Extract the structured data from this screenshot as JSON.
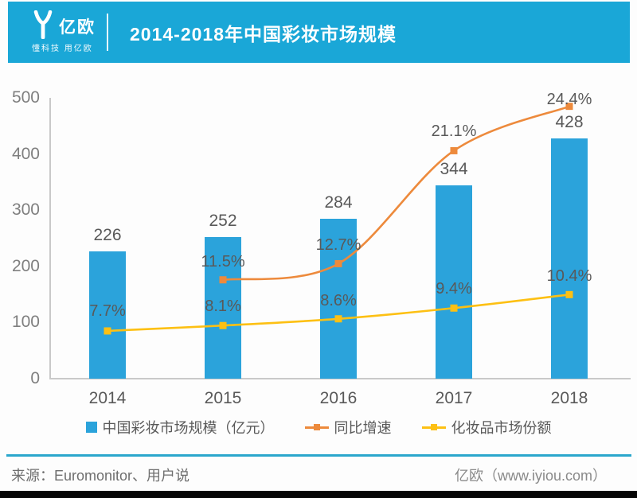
{
  "header": {
    "logo_text": "亿欧",
    "logo_tagline": "懂科技 用亿欧",
    "title": "2014-2018年中国彩妆市场规模"
  },
  "chart_data": {
    "type": "bar",
    "title": "2014-2018年中国彩妆市场规模",
    "categories": [
      "2014",
      "2015",
      "2016",
      "2017",
      "2018"
    ],
    "series": [
      {
        "name": "中国彩妆市场规模（亿元）",
        "type": "bar",
        "axis": "left",
        "color": "#2BA3DB",
        "values": [
          226,
          252,
          284,
          344,
          428
        ],
        "labels": [
          "226",
          "252",
          "284",
          "344",
          "428"
        ]
      },
      {
        "name": "同比增速",
        "type": "line",
        "axis": "right",
        "color": "#ED8A3C",
        "values": [
          null,
          11.5,
          12.7,
          21.1,
          24.4
        ],
        "labels": [
          "",
          "11.5%",
          "12.7%",
          "21.1%",
          "24.4%"
        ],
        "label_dy": [
          0,
          -23,
          -23,
          -24,
          -9
        ]
      },
      {
        "name": "化妆品市场份额",
        "type": "line",
        "axis": "right",
        "color": "#FDC013",
        "values": [
          7.7,
          8.1,
          8.6,
          9.4,
          10.4
        ],
        "labels": [
          "7.7%",
          "8.1%",
          "8.6%",
          "9.4%",
          "10.4%"
        ],
        "label_dy": [
          -25,
          -24,
          -23,
          -24,
          -23
        ]
      }
    ],
    "xlabel": "",
    "ylabel": "",
    "ylim": [
      0,
      500
    ],
    "yticks": [
      0,
      100,
      200,
      300,
      400,
      500
    ],
    "y2lim": [
      4.15,
      25.03
    ],
    "grid": false,
    "legend_position": "bottom"
  },
  "footer": {
    "source": "来源：Euromonitor、用户说",
    "credit": "亿欧（www.iyiou.com）"
  },
  "colors": {
    "header_bg": "#1AA7D7",
    "footer_divider": "#2BA7CC"
  }
}
